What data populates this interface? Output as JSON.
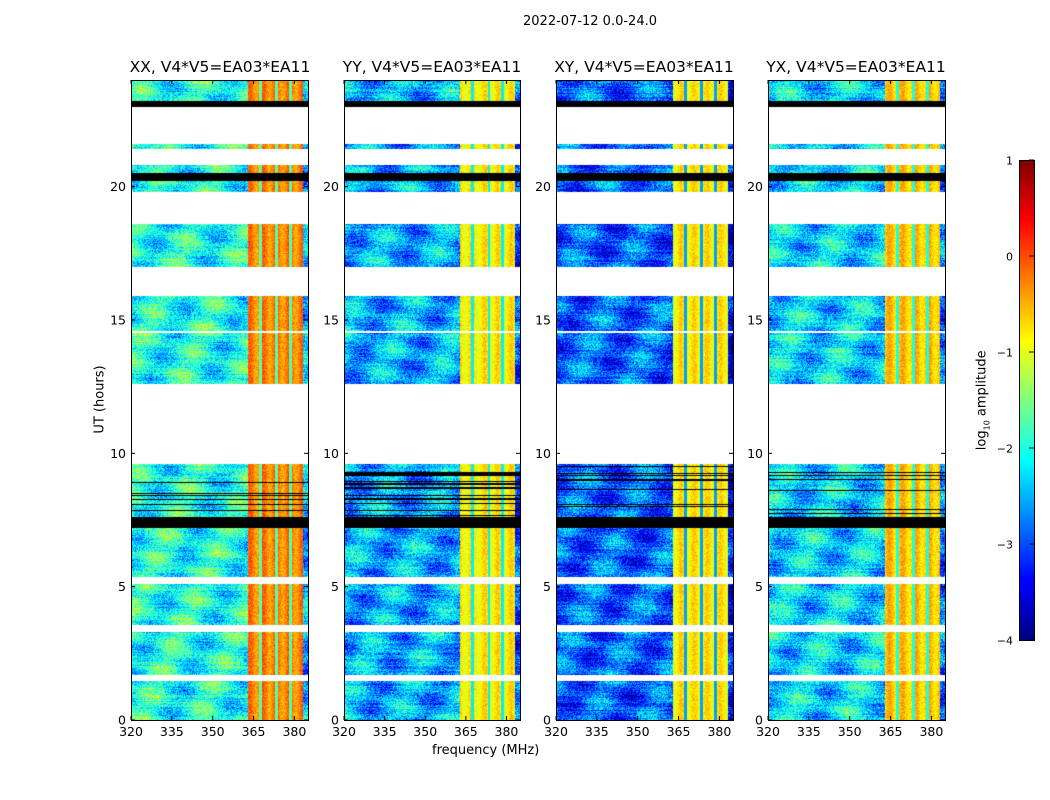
{
  "figure_title": "2022-07-12 0.0-24.0",
  "chart_data": [
    {
      "type": "heatmap",
      "panels": [
        {
          "title": "XX, V4*V5=EA03*EA11",
          "background_level": -2.0,
          "band_level": -0.25
        },
        {
          "title": "YY, V4*V5=EA03*EA11",
          "background_level": -2.5,
          "band_level": -0.8
        },
        {
          "title": "XY, V4*V5=EA03*EA11",
          "background_level": -2.9,
          "band_level": -0.8
        },
        {
          "title": "YX, V4*V5=EA03*EA11",
          "background_level": -2.3,
          "band_level": -0.6
        }
      ],
      "xlabel": "frequency (MHz)",
      "ylabel": "UT (hours)",
      "xlim": [
        320,
        385
      ],
      "ylim": [
        0,
        24
      ],
      "xticks": [
        "320",
        "335",
        "350",
        "365",
        "380"
      ],
      "yticks": [
        "0",
        "5",
        "10",
        "15",
        "20"
      ],
      "bright_band_MHz": [
        363,
        383
      ],
      "band_gaps_MHz": [
        367.5,
        373.5,
        378.5
      ],
      "valid_segments_hours": [
        [
          0,
          1.45
        ],
        [
          1.7,
          3.3
        ],
        [
          3.55,
          5.1
        ],
        [
          5.35,
          7.2
        ],
        [
          7.6,
          9.6
        ],
        [
          12.6,
          14.5
        ],
        [
          14.6,
          15.9
        ],
        [
          17.0,
          18.6
        ],
        [
          19.8,
          20.8
        ],
        [
          21.4,
          21.6
        ],
        [
          23.2,
          24
        ]
      ],
      "flagged_black_hours": [
        [
          7.2,
          7.6
        ],
        [
          20.2,
          20.5
        ],
        [
          23.0,
          23.2
        ]
      ],
      "colorbar": {
        "label": "log10 amplitude",
        "label_main": "log",
        "label_sub": "10",
        "label_rest": " amplitude",
        "range": [
          -4,
          1
        ],
        "ticks": [
          "1",
          "0",
          "−1",
          "−2",
          "−3",
          "−4"
        ],
        "colormap": "jet"
      }
    }
  ]
}
